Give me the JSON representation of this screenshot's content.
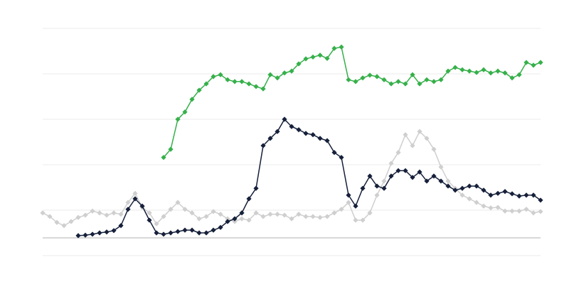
{
  "chart_data": {
    "type": "line",
    "title": "",
    "xlabel": "",
    "ylabel": "",
    "grid": true,
    "ylim": [
      -3.9,
      46.1
    ],
    "xlim": [
      0,
      70
    ],
    "baseline": 0,
    "colors": {
      "grid": "#ebebeb",
      "baseline": "#b0b0b0"
    },
    "series": [
      {
        "color": "#cfcfcf",
        "marker": "diamond",
        "x_start": 0,
        "values": [
          5.5,
          4.7,
          3.4,
          2.7,
          3.6,
          4.5,
          5.0,
          5.9,
          5.5,
          5.0,
          5.5,
          5.2,
          7.8,
          9.8,
          6.7,
          5.5,
          3.1,
          4.7,
          6.3,
          7.8,
          6.3,
          5.5,
          4.2,
          4.7,
          5.8,
          5.2,
          4.2,
          3.6,
          4.2,
          3.9,
          5.5,
          4.7,
          5.2,
          5.2,
          5.0,
          4.2,
          5.2,
          4.7,
          4.7,
          4.5,
          4.7,
          5.5,
          6.3,
          7.8,
          3.9,
          3.9,
          5.5,
          9.4,
          12.5,
          16.4,
          18.8,
          22.7,
          20.3,
          23.4,
          21.9,
          19.5,
          15.6,
          12.5,
          10.9,
          9.4,
          8.6,
          7.8,
          7.0,
          6.6,
          6.7,
          5.9,
          5.9,
          5.9,
          6.3,
          5.5,
          5.8
        ]
      },
      {
        "color": "#16203a",
        "marker": "diamond",
        "x_start": 5,
        "values": [
          0.5,
          0.6,
          0.8,
          1.1,
          1.3,
          1.6,
          2.7,
          6.3,
          8.6,
          7.0,
          3.9,
          1.1,
          0.8,
          1.1,
          1.4,
          1.7,
          1.7,
          1.1,
          1.1,
          1.7,
          2.3,
          3.6,
          4.2,
          5.5,
          8.6,
          10.9,
          20.3,
          21.9,
          23.4,
          26.1,
          24.5,
          23.8,
          23.0,
          22.7,
          21.9,
          21.4,
          18.8,
          17.7,
          9.4,
          7.0,
          10.9,
          13.6,
          11.4,
          10.9,
          13.6,
          14.8,
          14.8,
          13.3,
          14.5,
          12.5,
          13.6,
          12.5,
          11.4,
          10.5,
          10.9,
          11.4,
          11.4,
          10.5,
          9.4,
          9.8,
          10.2,
          9.7,
          9.2,
          9.4,
          9.4,
          8.3
        ]
      },
      {
        "color": "#36b04a",
        "marker": "diamond",
        "x_start": 17,
        "values": [
          17.7,
          19.5,
          26.1,
          27.7,
          30.5,
          32.5,
          33.9,
          35.5,
          35.9,
          34.8,
          34.4,
          34.4,
          33.9,
          33.3,
          32.8,
          35.9,
          35.2,
          36.3,
          36.7,
          38.3,
          39.4,
          39.8,
          40.2,
          39.5,
          41.7,
          42.0,
          34.8,
          34.4,
          35.2,
          35.8,
          35.5,
          34.8,
          33.9,
          34.4,
          33.9,
          35.9,
          33.9,
          34.8,
          34.4,
          34.8,
          36.7,
          37.5,
          37.0,
          36.7,
          36.4,
          37.0,
          36.3,
          36.7,
          36.3,
          35.2,
          35.9,
          38.6,
          38.0,
          38.6
        ]
      }
    ]
  }
}
